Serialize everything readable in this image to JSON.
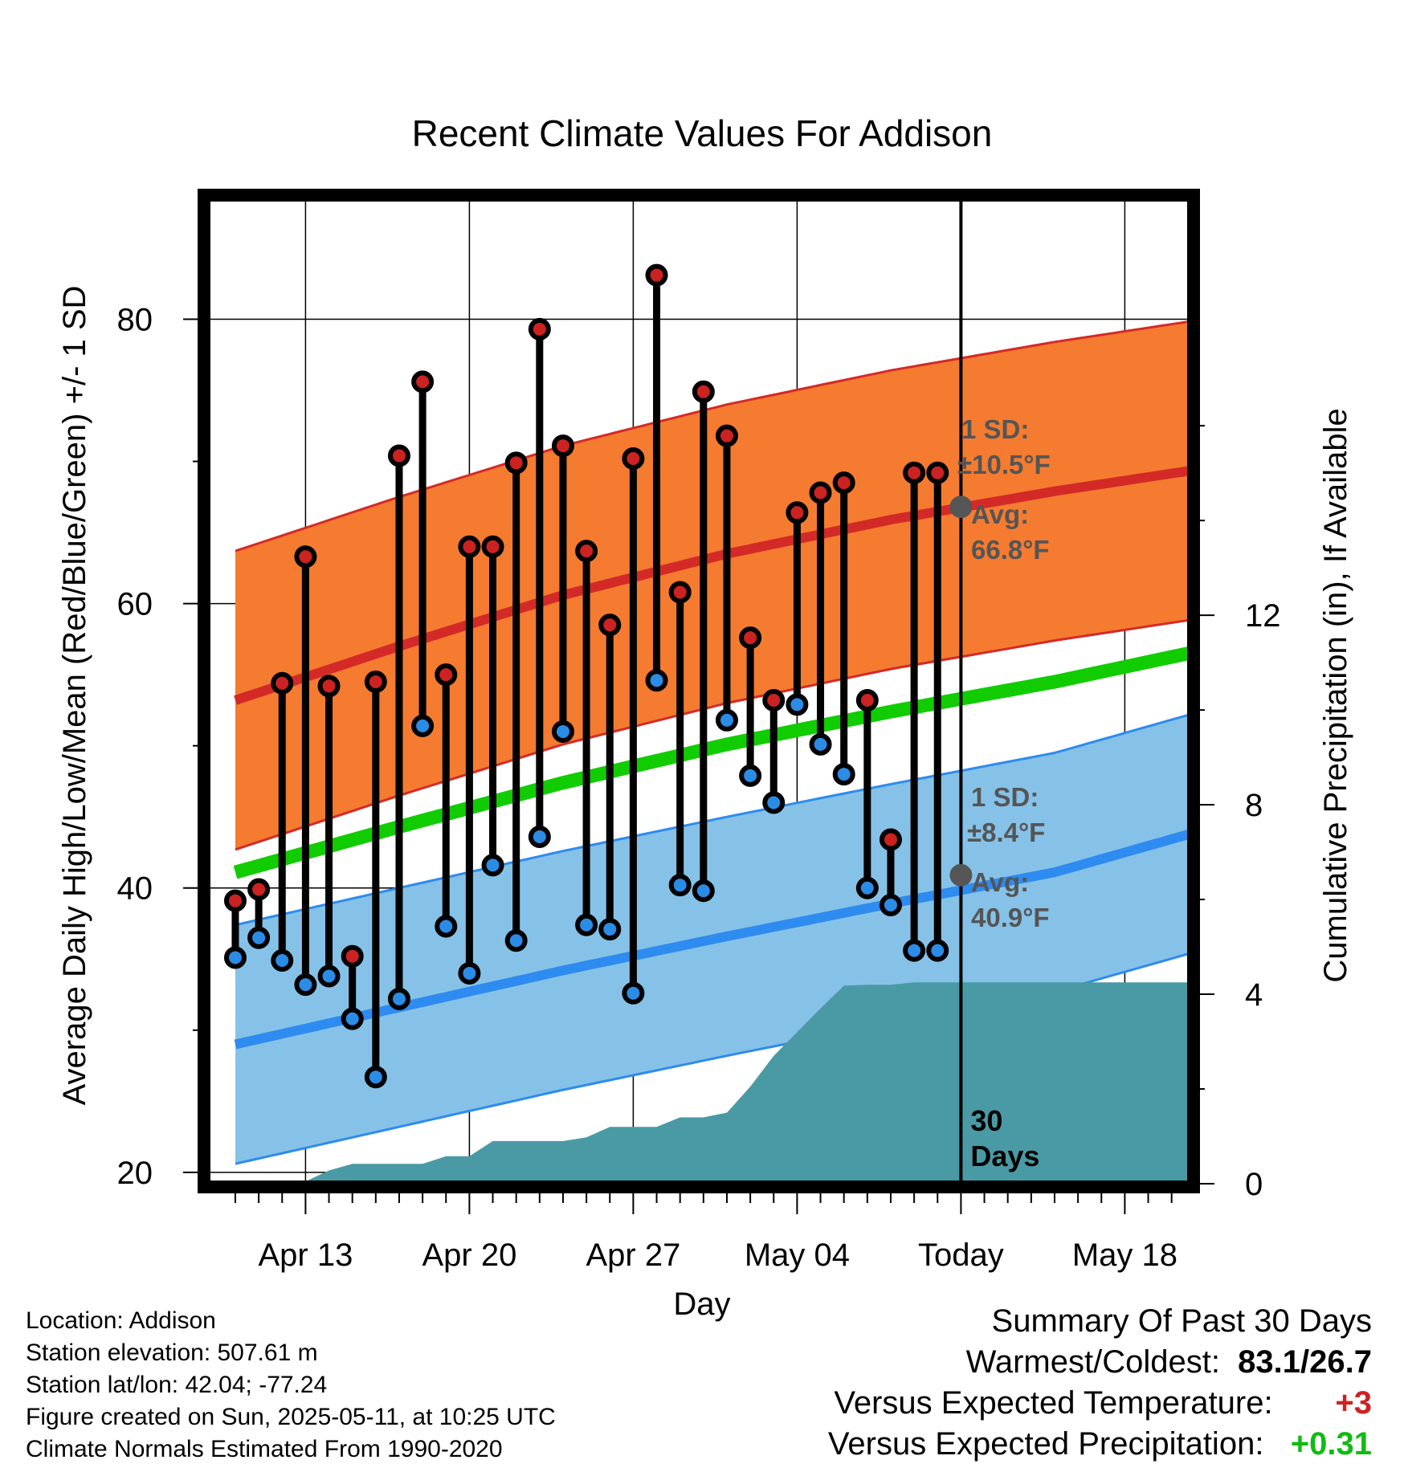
{
  "chart_data": {
    "type": "line",
    "title": "Recent Climate Values For Addison",
    "xlabel": "Day",
    "ylabel": "Average Daily High/Low/Mean (Red/Blue/Green) +/- 1 SD",
    "y2label": "Cumulative Precipitation (in), If Available",
    "ylim": [
      19.2,
      88.5
    ],
    "y2lim": [
      0,
      20.8
    ],
    "xlim": [
      "2025-04-09.8",
      "2025-05-21.8"
    ],
    "xlim_days": [
      -1.2,
      40.8
    ],
    "yticks": [
      20,
      40,
      60,
      80
    ],
    "y2ticks": [
      0,
      4,
      8,
      12
    ],
    "xticks": [
      {
        "date": "2025-04-13",
        "label": "Apr 13"
      },
      {
        "date": "2025-04-20",
        "label": "Apr 20"
      },
      {
        "date": "2025-04-27",
        "label": "Apr 27"
      },
      {
        "date": "2025-05-04",
        "label": "May 04"
      },
      {
        "date": "2025-05-11",
        "label": "Today"
      },
      {
        "date": "2025-05-18",
        "label": "May 18"
      }
    ],
    "grid": true,
    "today": "2025-05-11",
    "today_label": "30\nDays",
    "normals": {
      "dates": [
        "2025-04-10",
        "2025-04-17",
        "2025-04-24",
        "2025-05-01",
        "2025-05-08",
        "2025-05-15",
        "2025-05-21"
      ],
      "high_mean": [
        53.2,
        57.0,
        60.6,
        63.5,
        65.9,
        67.9,
        69.4
      ],
      "high_sd": 10.5,
      "low_mean": [
        29.0,
        31.6,
        34.2,
        36.6,
        38.9,
        41.1,
        43.9
      ],
      "low_sd": 8.4,
      "mean": [
        41.1,
        44.3,
        47.4,
        50.1,
        52.4,
        54.5,
        56.6
      ]
    },
    "series": [
      {
        "name": "High",
        "color": "#cc2222",
        "dates": [
          "2025-04-10",
          "2025-04-11",
          "2025-04-12",
          "2025-04-13",
          "2025-04-14",
          "2025-04-15",
          "2025-04-16",
          "2025-04-17",
          "2025-04-18",
          "2025-04-19",
          "2025-04-20",
          "2025-04-21",
          "2025-04-22",
          "2025-04-23",
          "2025-04-24",
          "2025-04-25",
          "2025-04-26",
          "2025-04-27",
          "2025-04-28",
          "2025-04-29",
          "2025-04-30",
          "2025-05-01",
          "2025-05-02",
          "2025-05-03",
          "2025-05-04",
          "2025-05-05",
          "2025-05-06",
          "2025-05-07",
          "2025-05-08",
          "2025-05-09",
          "2025-05-10"
        ],
        "values": [
          39.1,
          39.9,
          54.4,
          63.3,
          54.2,
          35.2,
          54.5,
          70.4,
          75.6,
          55.0,
          64.0,
          64.0,
          69.9,
          79.3,
          71.1,
          63.7,
          58.5,
          70.2,
          83.1,
          60.8,
          74.9,
          71.8,
          57.6,
          53.2,
          66.4,
          67.8,
          68.5,
          53.2,
          43.4,
          69.2,
          69.2
        ]
      },
      {
        "name": "Low",
        "color": "#2b8ce6",
        "dates": [
          "2025-04-10",
          "2025-04-11",
          "2025-04-12",
          "2025-04-13",
          "2025-04-14",
          "2025-04-15",
          "2025-04-16",
          "2025-04-17",
          "2025-04-18",
          "2025-04-19",
          "2025-04-20",
          "2025-04-21",
          "2025-04-22",
          "2025-04-23",
          "2025-04-24",
          "2025-04-25",
          "2025-04-26",
          "2025-04-27",
          "2025-04-28",
          "2025-04-29",
          "2025-04-30",
          "2025-05-01",
          "2025-05-02",
          "2025-05-03",
          "2025-05-04",
          "2025-05-05",
          "2025-05-06",
          "2025-05-07",
          "2025-05-08",
          "2025-05-09",
          "2025-05-10"
        ],
        "values": [
          35.1,
          36.5,
          34.9,
          33.2,
          33.8,
          30.8,
          26.7,
          32.2,
          51.4,
          37.3,
          34.0,
          41.6,
          36.3,
          43.6,
          51.0,
          37.4,
          37.1,
          32.6,
          54.6,
          40.2,
          39.8,
          51.8,
          47.9,
          46.0,
          52.9,
          50.1,
          48.0,
          40.0,
          38.8,
          35.6,
          35.6
        ]
      },
      {
        "name": "Cumulative Precipitation",
        "color": "#4a9aa5",
        "axis": "y2",
        "dates": [
          "2025-04-12",
          "2025-04-13",
          "2025-04-14",
          "2025-04-15",
          "2025-04-16",
          "2025-04-17",
          "2025-04-18",
          "2025-04-19",
          "2025-04-20",
          "2025-04-21",
          "2025-04-22",
          "2025-04-23",
          "2025-04-24",
          "2025-04-25",
          "2025-04-26",
          "2025-04-27",
          "2025-04-28",
          "2025-04-29",
          "2025-04-30",
          "2025-05-01",
          "2025-05-02",
          "2025-05-03",
          "2025-05-04",
          "2025-05-05",
          "2025-05-06",
          "2025-05-07",
          "2025-05-08",
          "2025-05-09",
          "2025-05-10",
          "2025-05-11"
        ],
        "values": [
          0.05,
          0.05,
          0.28,
          0.42,
          0.42,
          0.42,
          0.42,
          0.58,
          0.58,
          0.9,
          0.9,
          0.9,
          0.9,
          0.98,
          1.2,
          1.2,
          1.2,
          1.4,
          1.4,
          1.5,
          2.05,
          2.7,
          3.2,
          3.7,
          4.18,
          4.2,
          4.2,
          4.25,
          4.25,
          4.25
        ]
      }
    ],
    "annotations": {
      "high_sd_line1": "1 SD:",
      "high_sd_line2": "±10.5°F",
      "high_avg_line1": "Avg:",
      "high_avg_line2": "66.8°F",
      "high_avg_value": 66.8,
      "low_sd_line1": "1 SD:",
      "low_sd_line2": "±8.4°F",
      "low_avg_line1": "Avg:",
      "low_avg_line2": "40.9°F",
      "low_avg_value": 40.9
    },
    "colors": {
      "high_band": "#f47b30",
      "high_line": "#d42a27",
      "low_band": "#86c2e8",
      "low_line": "#2e8bef",
      "mean_line": "#11cc00",
      "precip_fill": "#4a9aa5",
      "note_gray": "#555555",
      "positive_red": "#cc2222",
      "positive_green": "#11bb11"
    }
  },
  "info": {
    "location": "Location: Addison",
    "elevation": "Station elevation: 507.61 m",
    "latlon": "Station lat/lon: 42.04; -77.24",
    "created": "Figure created on Sun, 2025-05-11, at 10:25 UTC",
    "normals": "Climate Normals Estimated From 1990-2020"
  },
  "summary": {
    "heading": "Summary Of Past 30 Days",
    "warm_cold_label": "Warmest/Coldest:",
    "warm_cold_value": "83.1/26.7",
    "temp_label": "Versus Expected Temperature:",
    "temp_value": "+3",
    "precip_label": "Versus Expected Precipitation:",
    "precip_value": "+0.31"
  }
}
